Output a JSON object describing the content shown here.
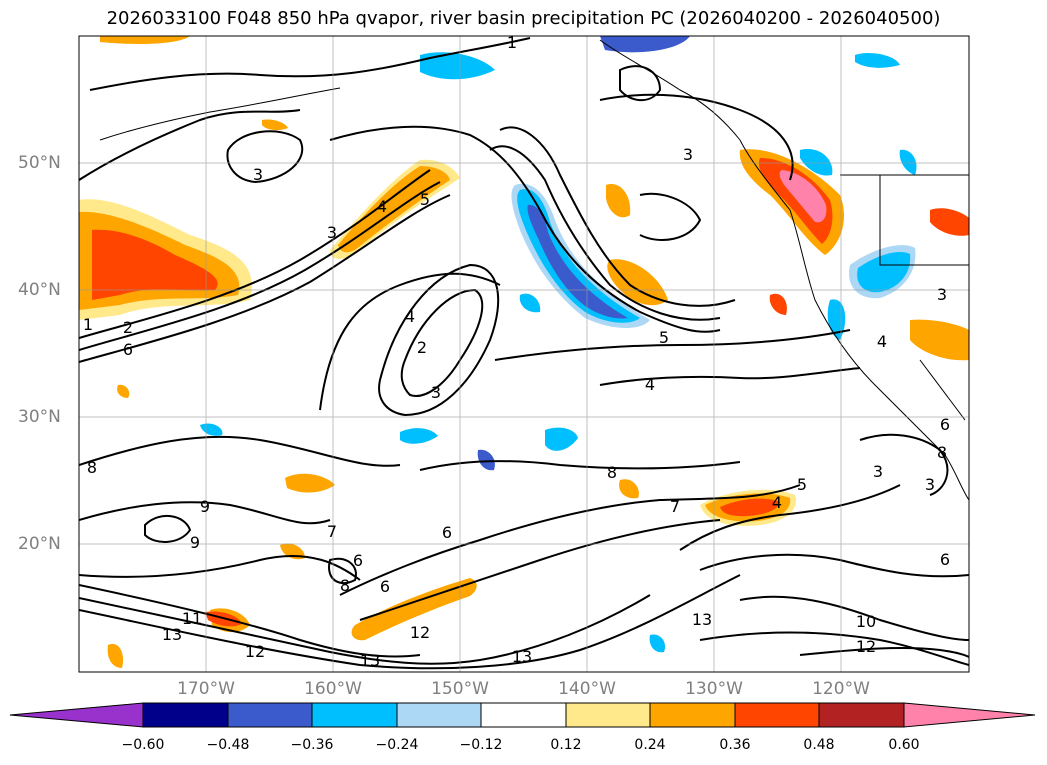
{
  "title": "2026033100 F048 850 hPa qvapor, river basin precipitation PC (2026040200 - 2026040500)",
  "lat_labels": [
    "50°N",
    "40°N",
    "30°N",
    "20°N"
  ],
  "lon_labels": [
    "170°W",
    "160°W",
    "150°W",
    "140°W",
    "130°W",
    "120°W"
  ],
  "colorbar": {
    "colors": [
      "#9932cc",
      "#00008b",
      "#3b5bcc",
      "#00bfff",
      "#add8f5",
      "#ffffff",
      "#ffe98a",
      "#ffa500",
      "#ff4500",
      "#b22222",
      "#ff82ab"
    ],
    "tick_labels": [
      "−0.60",
      "−0.48",
      "−0.36",
      "−0.24",
      "−0.12",
      "0.12",
      "0.24",
      "0.36",
      "0.48",
      "0.60"
    ]
  },
  "contour_labels": [
    "1",
    "2",
    "6",
    "3",
    "3",
    "4",
    "5",
    "2",
    "4",
    "3",
    "5",
    "4",
    "8",
    "7",
    "8",
    "9",
    "9",
    "11",
    "13",
    "12",
    "13",
    "7",
    "6",
    "8",
    "6",
    "6",
    "12",
    "13",
    "13",
    "10",
    "12",
    "4",
    "5",
    "3",
    "3",
    "6",
    "3",
    "4",
    "3",
    "6",
    "8",
    "1"
  ]
}
